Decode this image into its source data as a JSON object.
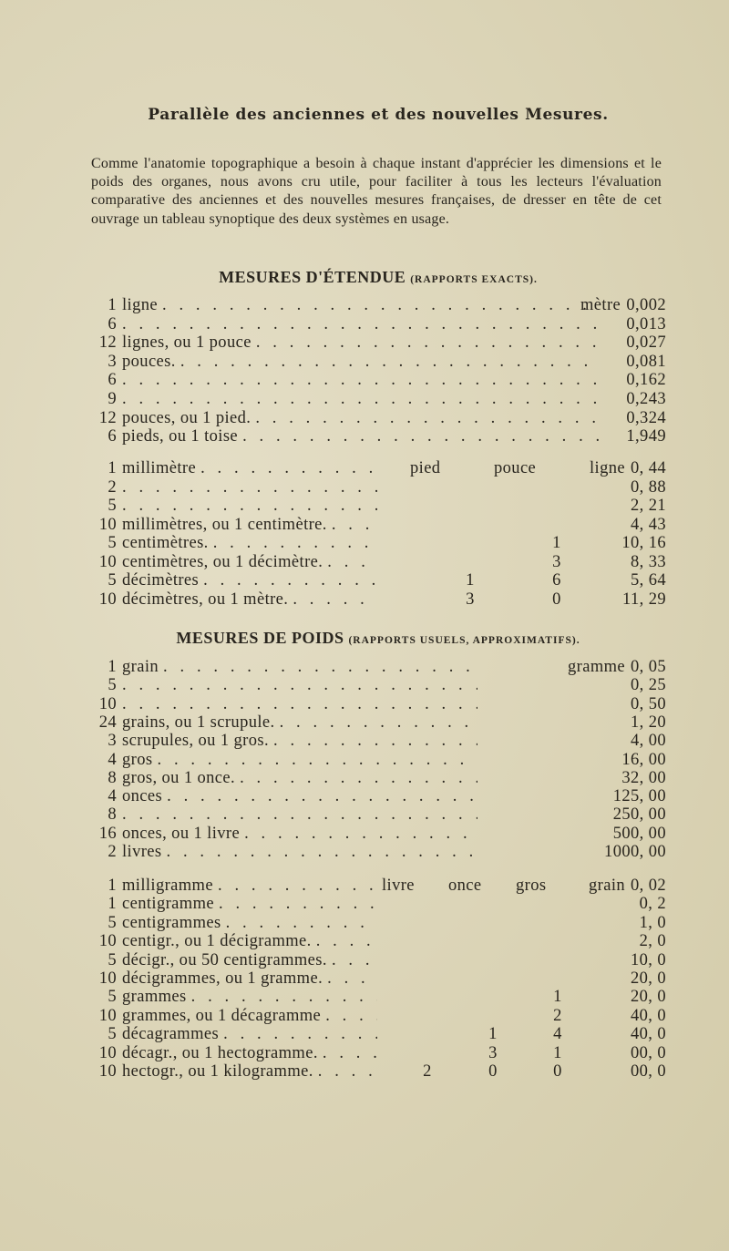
{
  "title": "Parallèle des anciennes et des nouvelles Mesures.",
  "intro": "Comme l'anatomie topographique a besoin à chaque instant d'apprécier les dimensions et le poids des organes, nous avons cru utile, pour faciliter à tous les lecteurs l'évaluation comparative des anciennes et des nouvelles mesures françaises, de dresser en tête de cet ouvrage un tableau synoptique des deux systèmes en usage.",
  "section_etendue": {
    "heading": "MESURES D'ÉTENDUE",
    "note": "(rapports exacts)."
  },
  "section_poids": {
    "heading": "MESURES DE POIDS",
    "note": "(rapports usuels, approximatifs)."
  },
  "tables": [
    {
      "headers": [],
      "unit": "mètre",
      "rows": [
        {
          "num": "1",
          "label": "ligne",
          "cols": [],
          "value": "0,002"
        },
        {
          "num": "6",
          "label": "",
          "cols": [],
          "value": "0,013"
        },
        {
          "num": "12",
          "label": "lignes, ou 1 pouce",
          "cols": [],
          "value": "0,027"
        },
        {
          "num": "3",
          "label": "pouces.",
          "cols": [],
          "value": "0,081"
        },
        {
          "num": "6",
          "label": "",
          "cols": [],
          "value": "0,162"
        },
        {
          "num": "9",
          "label": "",
          "cols": [],
          "value": "0,243"
        },
        {
          "num": "12",
          "label": "pouces, ou 1 pied.",
          "cols": [],
          "value": "0,324"
        },
        {
          "num": "6",
          "label": "pieds, ou 1 toise",
          "cols": [],
          "value": "1,949"
        }
      ]
    },
    {
      "headers": [
        "pied",
        "pouce"
      ],
      "unit": "ligne",
      "rows": [
        {
          "num": "1",
          "label": "millimètre",
          "cols": [
            "",
            ""
          ],
          "value": "0, 44"
        },
        {
          "num": "2",
          "label": "",
          "cols": [
            "",
            ""
          ],
          "value": "0, 88"
        },
        {
          "num": "5",
          "label": "",
          "cols": [
            "",
            ""
          ],
          "value": "2, 21"
        },
        {
          "num": "10",
          "label": "millimètres, ou 1 centimètre.",
          "cols": [
            "",
            ""
          ],
          "value": "4, 43"
        },
        {
          "num": "5",
          "label": "centimètres.",
          "cols": [
            "",
            "1"
          ],
          "value": "10, 16"
        },
        {
          "num": "10",
          "label": "centimètres, ou 1 décimètre.",
          "cols": [
            "",
            "3"
          ],
          "value": "8, 33"
        },
        {
          "num": "5",
          "label": "décimètres",
          "cols": [
            "1",
            "6"
          ],
          "value": "5, 64"
        },
        {
          "num": "10",
          "label": "décimètres, ou 1 mètre.",
          "cols": [
            "3",
            "0"
          ],
          "value": "11, 29"
        }
      ]
    },
    {
      "headers": [],
      "unit": "gramme",
      "rows": [
        {
          "num": "1",
          "label": "grain",
          "cols": [],
          "value": "0, 05"
        },
        {
          "num": "5",
          "label": "",
          "cols": [],
          "value": "0, 25"
        },
        {
          "num": "10",
          "label": "",
          "cols": [],
          "value": "0, 50"
        },
        {
          "num": "24",
          "label": "grains, ou 1 scrupule.",
          "cols": [],
          "value": "1, 20"
        },
        {
          "num": "3",
          "label": "scrupules, ou 1 gros.",
          "cols": [],
          "value": "4, 00"
        },
        {
          "num": "4",
          "label": "gros",
          "cols": [],
          "value": "16, 00"
        },
        {
          "num": "8",
          "label": "gros, ou 1 once.",
          "cols": [],
          "value": "32, 00"
        },
        {
          "num": "4",
          "label": "onces",
          "cols": [],
          "value": "125, 00"
        },
        {
          "num": "8",
          "label": "",
          "cols": [],
          "value": "250, 00"
        },
        {
          "num": "16",
          "label": "onces, ou 1 livre",
          "cols": [],
          "value": "500, 00"
        },
        {
          "num": "2",
          "label": "livres",
          "cols": [],
          "value": "1000, 00"
        }
      ]
    },
    {
      "headers": [
        "livre",
        "once",
        "gros"
      ],
      "unit": "grain",
      "rows": [
        {
          "num": "1",
          "label": "milligramme",
          "cols": [
            "",
            "",
            ""
          ],
          "value": "0, 02"
        },
        {
          "num": "1",
          "label": "centigramme",
          "cols": [
            "",
            "",
            ""
          ],
          "value": "0, 2"
        },
        {
          "num": "5",
          "label": "centigrammes",
          "cols": [
            "",
            "",
            ""
          ],
          "value": "1, 0"
        },
        {
          "num": "10",
          "label": "centigr., ou 1 décigramme.",
          "cols": [
            "",
            "",
            ""
          ],
          "value": "2, 0"
        },
        {
          "num": "5",
          "label": "décigr., ou 50 centigrammes.",
          "cols": [
            "",
            "",
            ""
          ],
          "value": "10, 0"
        },
        {
          "num": "10",
          "label": "décigrammes, ou 1 gramme.",
          "cols": [
            "",
            "",
            ""
          ],
          "value": "20, 0"
        },
        {
          "num": "5",
          "label": "grammes",
          "cols": [
            "",
            "",
            "1"
          ],
          "value": "20, 0"
        },
        {
          "num": "10",
          "label": "grammes, ou 1 décagramme",
          "cols": [
            "",
            "",
            "2"
          ],
          "value": "40, 0"
        },
        {
          "num": "5",
          "label": "décagrammes",
          "cols": [
            "",
            "1",
            "4"
          ],
          "value": "40, 0"
        },
        {
          "num": "10",
          "label": "décagr., ou 1 hectogramme.",
          "cols": [
            "",
            "3",
            "1"
          ],
          "value": "00, 0"
        },
        {
          "num": "10",
          "label": "hectogr., ou 1 kilogramme.",
          "cols": [
            "2",
            "0",
            "0"
          ],
          "value": "00, 0"
        }
      ]
    }
  ]
}
